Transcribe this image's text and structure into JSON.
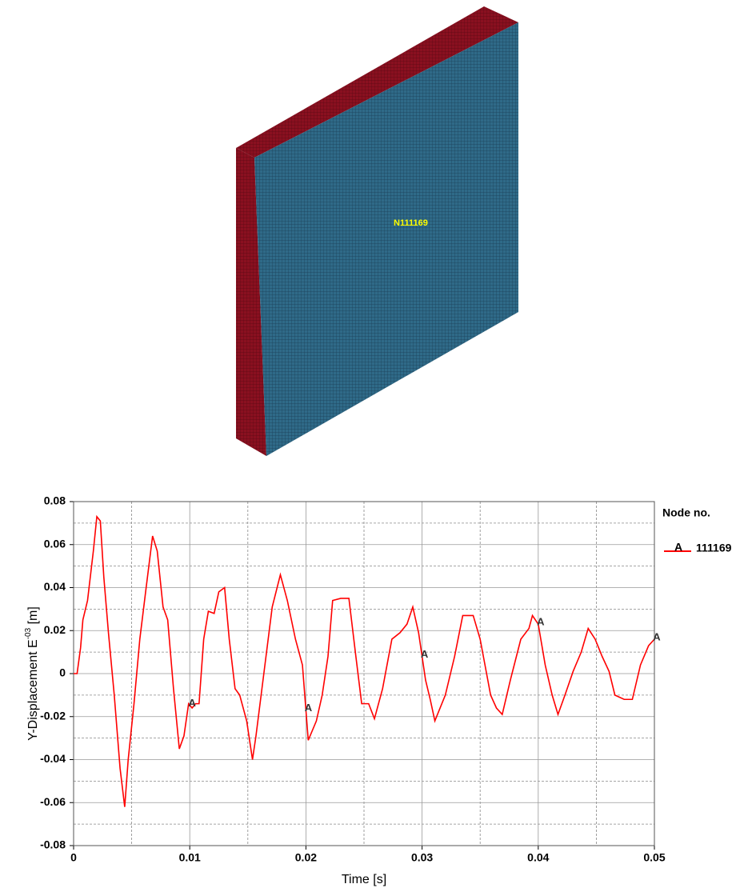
{
  "model_label": "N111169",
  "chart_data": {
    "type": "line",
    "xlabel": "Time [s]",
    "ylabel": [
      "Y-Displacement E",
      "-03",
      " [m]"
    ],
    "legend_title": "Node no.",
    "xlim": [
      0,
      0.05
    ],
    "xticks": [
      0,
      0.01,
      0.02,
      0.03,
      0.04,
      0.05
    ],
    "ylim": [
      -0.08,
      0.08
    ],
    "yticks": [
      -0.08,
      -0.06,
      -0.04,
      -0.02,
      0,
      0.02,
      0.04,
      0.06,
      0.08
    ],
    "grid": true,
    "series": [
      {
        "name": "111169",
        "marker_label": "A",
        "color": "#ff0000",
        "x": [
          0,
          0.0003,
          0.0006,
          0.0008,
          0.0012,
          0.0017,
          0.002,
          0.0023,
          0.0026,
          0.003,
          0.0035,
          0.004,
          0.0044,
          0.0047,
          0.0052,
          0.0057,
          0.0062,
          0.0068,
          0.0072,
          0.0077,
          0.0081,
          0.0086,
          0.0091,
          0.0095,
          0.0099,
          0.0102,
          0.0105,
          0.0108,
          0.0112,
          0.0116,
          0.0121,
          0.0125,
          0.013,
          0.0134,
          0.0139,
          0.0143,
          0.0149,
          0.0154,
          0.0157,
          0.0164,
          0.0171,
          0.0178,
          0.0184,
          0.0191,
          0.0197,
          0.0202,
          0.0209,
          0.0214,
          0.0219,
          0.0223,
          0.023,
          0.0237,
          0.0243,
          0.0248,
          0.0254,
          0.0259,
          0.0266,
          0.0274,
          0.0281,
          0.0287,
          0.0292,
          0.0297,
          0.0303,
          0.0307,
          0.0311,
          0.032,
          0.0328,
          0.0335,
          0.0344,
          0.035,
          0.0359,
          0.0364,
          0.0369,
          0.0376,
          0.0385,
          0.0392,
          0.0395,
          0.04,
          0.0406,
          0.0412,
          0.0417,
          0.0423,
          0.043,
          0.0437,
          0.0443,
          0.0449,
          0.0455,
          0.0461,
          0.0466,
          0.0474,
          0.0481,
          0.0488,
          0.0495,
          0.05
        ],
        "values": [
          0,
          0,
          0.012,
          0.025,
          0.034,
          0.057,
          0.073,
          0.071,
          0.045,
          0.019,
          -0.01,
          -0.044,
          -0.062,
          -0.04,
          -0.014,
          0.016,
          0.038,
          0.064,
          0.057,
          0.031,
          0.025,
          -0.007,
          -0.035,
          -0.029,
          -0.014,
          -0.016,
          -0.014,
          -0.014,
          0.016,
          0.029,
          0.028,
          0.038,
          0.04,
          0.016,
          -0.007,
          -0.01,
          -0.022,
          -0.04,
          -0.029,
          0.001,
          0.031,
          0.046,
          0.034,
          0.016,
          0.004,
          -0.031,
          -0.022,
          -0.01,
          0.008,
          0.034,
          0.035,
          0.035,
          0.008,
          -0.014,
          -0.014,
          -0.021,
          -0.007,
          0.016,
          0.019,
          0.023,
          0.031,
          0.019,
          -0.003,
          -0.012,
          -0.022,
          -0.01,
          0.008,
          0.027,
          0.027,
          0.016,
          -0.01,
          -0.016,
          -0.019,
          -0.003,
          0.016,
          0.021,
          0.027,
          0.023,
          0.004,
          -0.01,
          -0.019,
          -0.01,
          0.001,
          0.01,
          0.021,
          0.016,
          0.008,
          0.001,
          -0.01,
          -0.012,
          -0.012,
          0.004,
          0.013,
          0.016
        ]
      }
    ]
  }
}
